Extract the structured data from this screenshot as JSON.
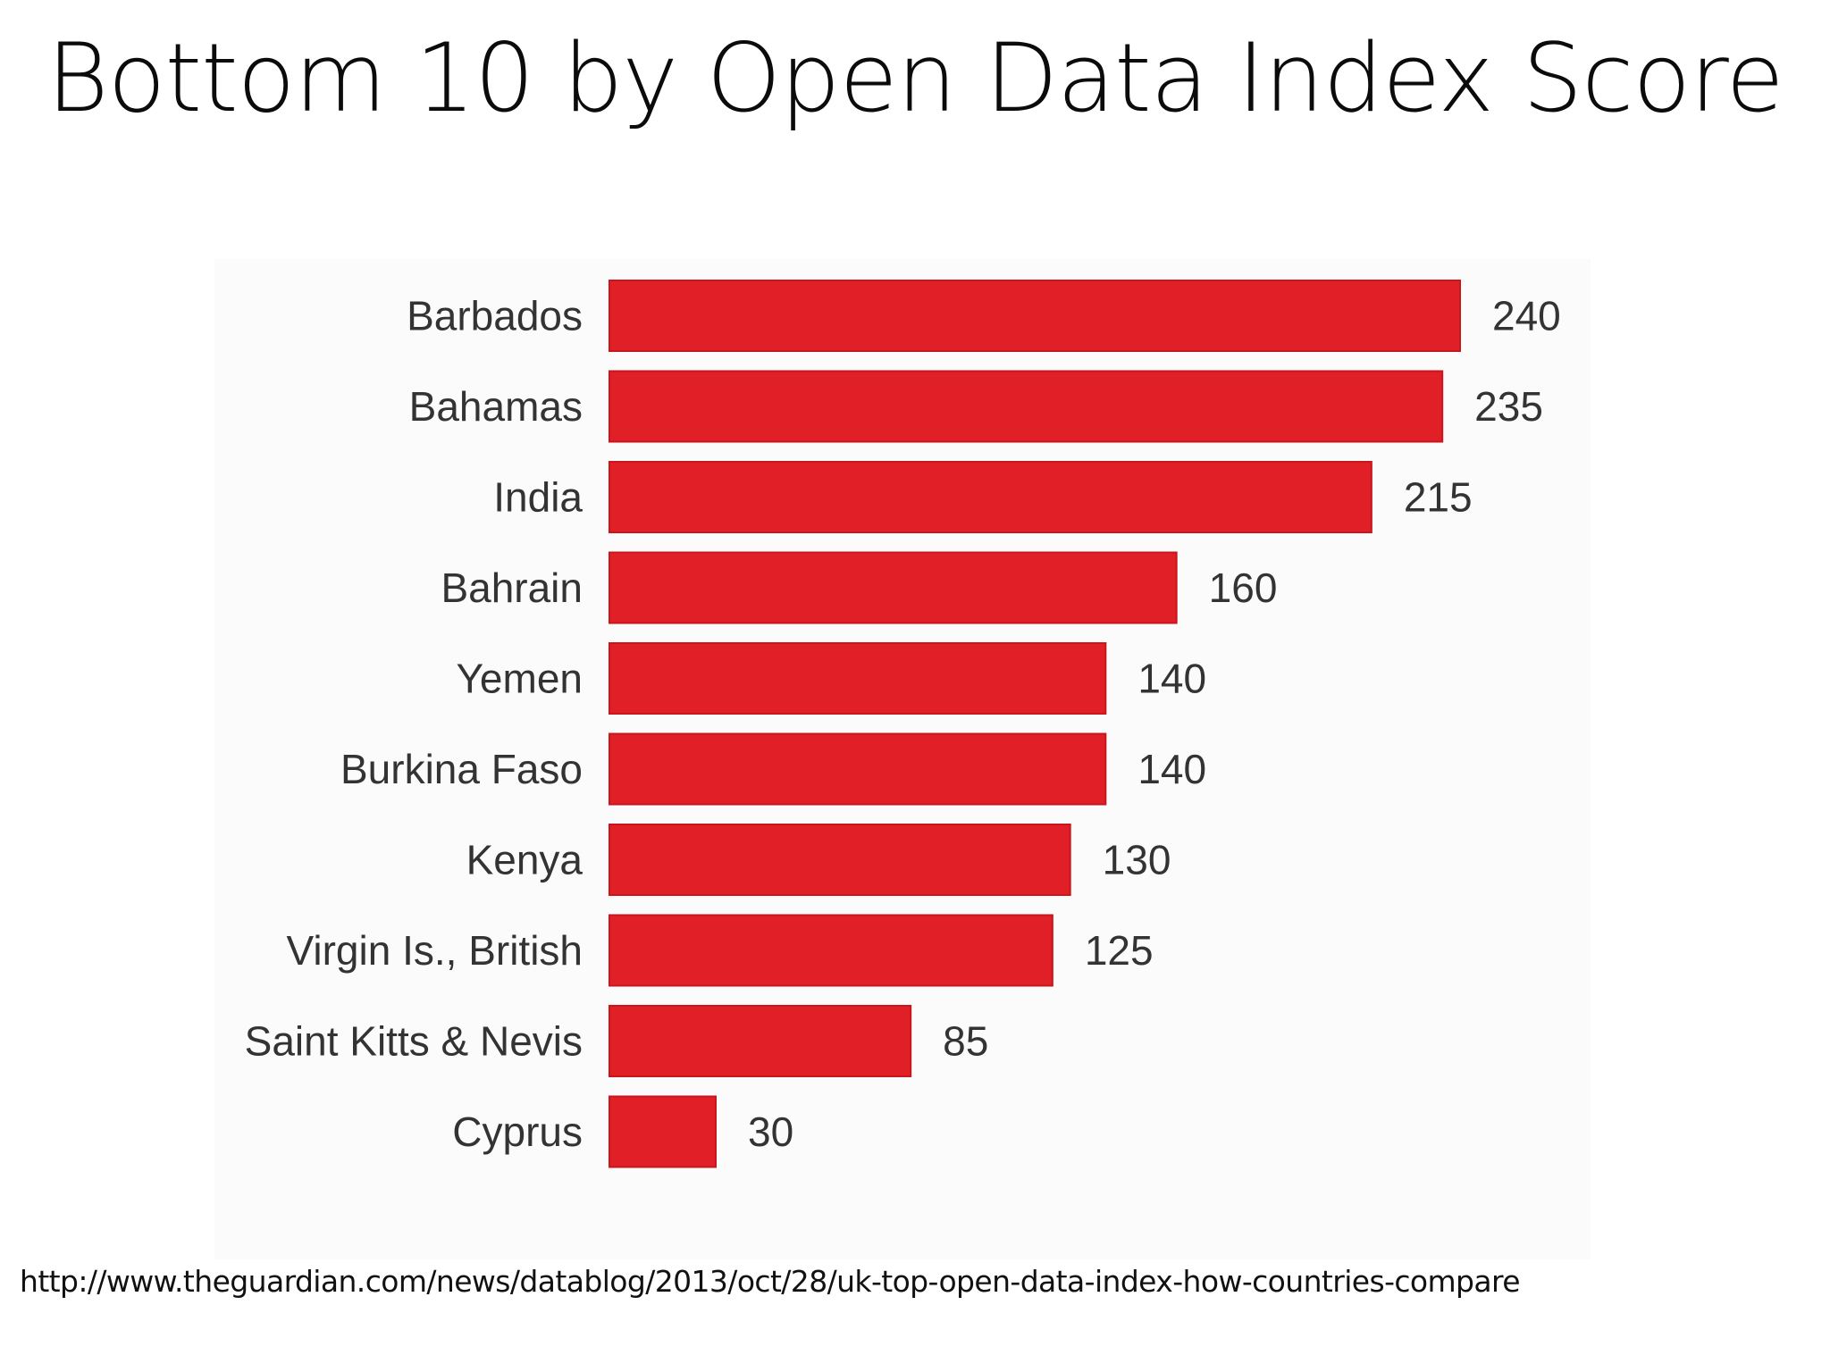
{
  "slide": {
    "title": "Bottom 10 by Open Data Index Score",
    "source_url": "http://www.theguardian.com/news/datablog/2013/oct/28/uk-top-open-data-index-how-countries-compare"
  },
  "colors": {
    "bar": "#e01f26",
    "bar_edge": "#c8161d",
    "label_text": "#333333",
    "value_text": "#333333"
  },
  "chart_data": {
    "type": "bar",
    "orientation": "horizontal",
    "categories": [
      "Barbados",
      "Bahamas",
      "India",
      "Bahrain",
      "Yemen",
      "Burkina Faso",
      "Kenya",
      "Virgin Is., British",
      "Saint Kitts & Nevis",
      "Cyprus"
    ],
    "values": [
      240,
      235,
      215,
      160,
      140,
      140,
      130,
      125,
      85,
      30
    ],
    "value_labels": [
      "240",
      "235",
      "215",
      "160",
      "140",
      "140",
      "130",
      "125",
      "85",
      "30"
    ],
    "xlim": [
      0,
      240
    ],
    "grid": false,
    "legend": "none"
  }
}
